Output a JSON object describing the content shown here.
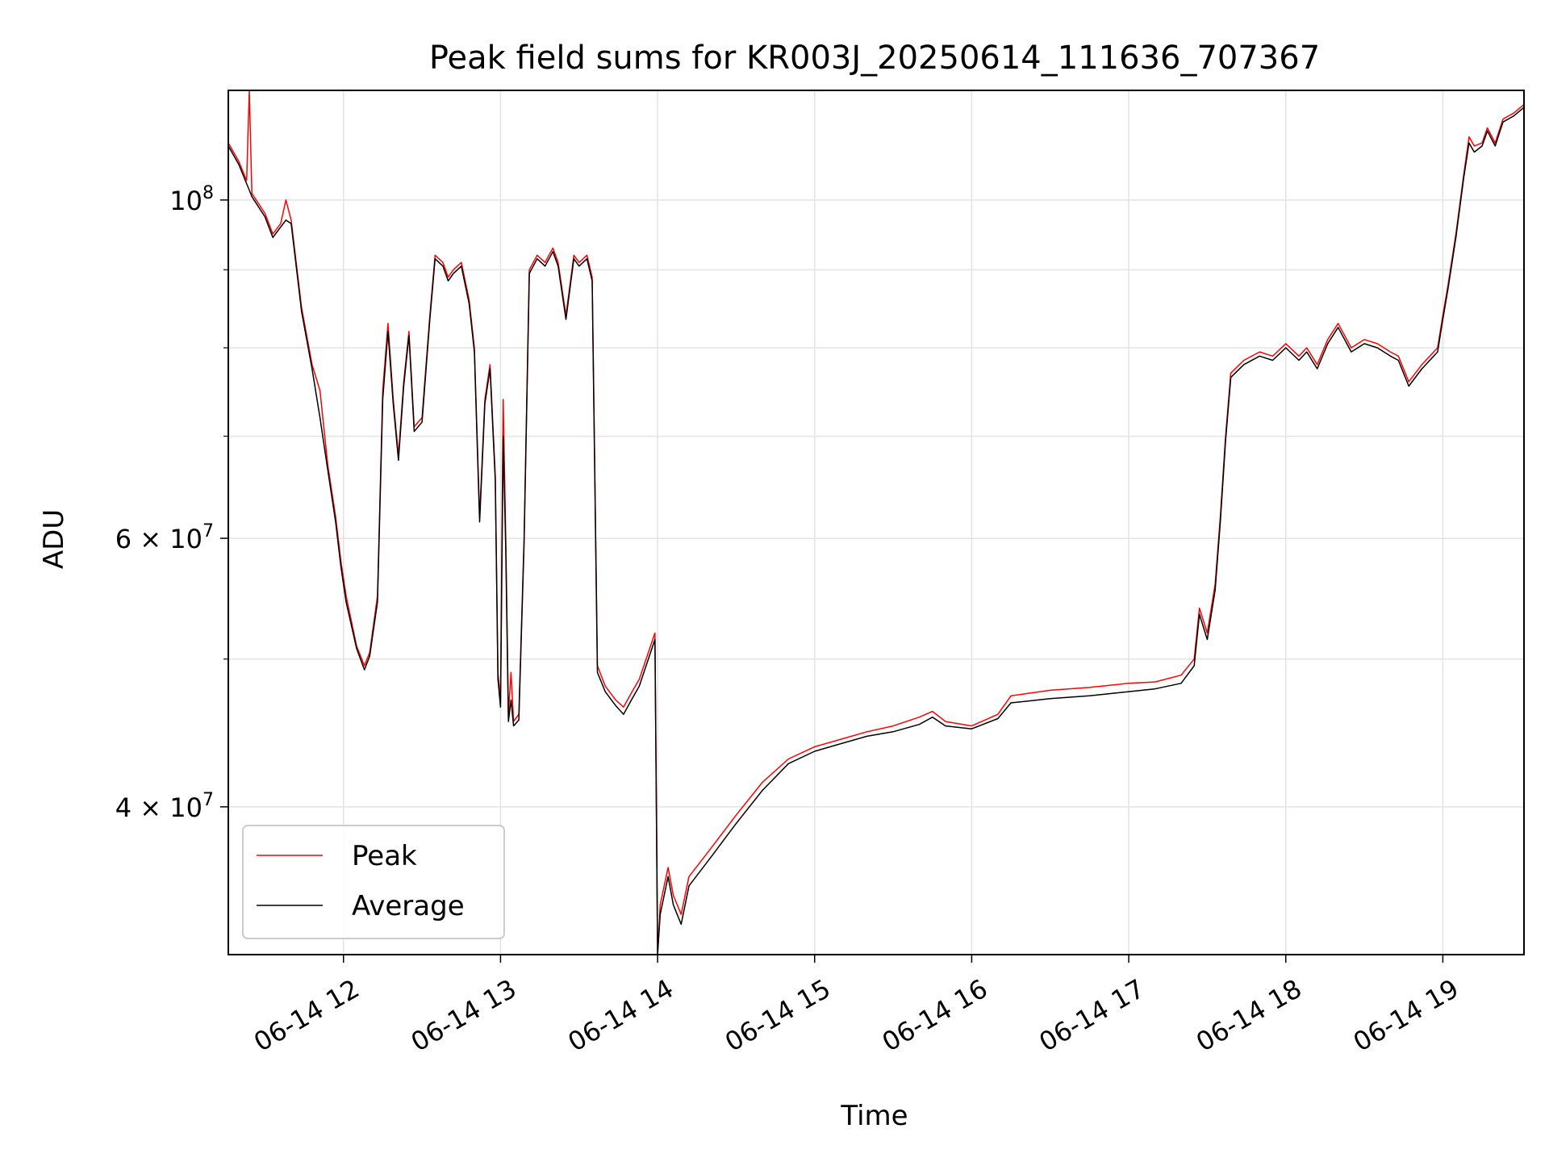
{
  "chart_data": {
    "type": "line",
    "title": "Peak field sums for KR003J_20250614_111636_707367",
    "xlabel": "Time",
    "ylabel": "ADU",
    "x_unit": "time of day (2025-06-14)",
    "xlim": [
      "11:16",
      "19:31"
    ],
    "ylim": [
      32000000,
      118000000
    ],
    "yscale": "log",
    "grid": true,
    "legend_position": "lower-left",
    "x_ticks": [
      {
        "time": "12:00",
        "label": "06-14 12"
      },
      {
        "time": "13:00",
        "label": "06-14 13"
      },
      {
        "time": "14:00",
        "label": "06-14 14"
      },
      {
        "time": "15:00",
        "label": "06-14 15"
      },
      {
        "time": "16:00",
        "label": "06-14 16"
      },
      {
        "time": "17:00",
        "label": "06-14 17"
      },
      {
        "time": "18:00",
        "label": "06-14 18"
      },
      {
        "time": "19:00",
        "label": "06-14 19"
      }
    ],
    "y_ticks": [
      {
        "value": 100000000,
        "base": "10",
        "exp": "8",
        "label": "10^8"
      },
      {
        "value": 60000000,
        "base": "6 × 10",
        "exp": "7",
        "label": "6 × 10^7"
      },
      {
        "value": 40000000,
        "base": "4 × 10",
        "exp": "7",
        "label": "4 × 10^7"
      }
    ],
    "y_minor_ticks": [
      50000000,
      70000000,
      80000000,
      90000000
    ],
    "series": [
      {
        "name": "Peak",
        "color": "#ff0000",
        "points": [
          [
            "11:16",
            109000000
          ],
          [
            "11:20",
            106000000
          ],
          [
            "11:23",
            103000000
          ],
          [
            "11:24",
            118000000
          ],
          [
            "11:25",
            101000000
          ],
          [
            "11:30",
            98000000
          ],
          [
            "11:33",
            95000000
          ],
          [
            "11:36",
            96500000
          ],
          [
            "11:38",
            100000000
          ],
          [
            "11:40",
            97000000
          ],
          [
            "11:44",
            85000000
          ],
          [
            "11:48",
            78000000
          ],
          [
            "11:51",
            75000000
          ],
          [
            "11:54",
            67000000
          ],
          [
            "11:57",
            62000000
          ],
          [
            "11:59",
            58000000
          ],
          [
            "12:01",
            55000000
          ],
          [
            "12:05",
            51000000
          ],
          [
            "12:08",
            49500000
          ],
          [
            "12:10",
            50500000
          ],
          [
            "12:13",
            55000000
          ],
          [
            "12:15",
            75000000
          ],
          [
            "12:17",
            83000000
          ],
          [
            "12:19",
            74000000
          ],
          [
            "12:21",
            68000000
          ],
          [
            "12:23",
            76000000
          ],
          [
            "12:25",
            82000000
          ],
          [
            "12:27",
            71000000
          ],
          [
            "12:30",
            72000000
          ],
          [
            "12:33",
            84000000
          ],
          [
            "12:35",
            92000000
          ],
          [
            "12:38",
            91000000
          ],
          [
            "12:40",
            89000000
          ],
          [
            "12:42",
            90000000
          ],
          [
            "12:45",
            91000000
          ],
          [
            "12:48",
            86000000
          ],
          [
            "12:50",
            80000000
          ],
          [
            "12:52",
            62000000
          ],
          [
            "12:54",
            74000000
          ],
          [
            "12:56",
            78000000
          ],
          [
            "12:58",
            66000000
          ],
          [
            "12:59",
            49000000
          ],
          [
            "13:00",
            47000000
          ],
          [
            "13:01",
            74000000
          ],
          [
            "13:02",
            60000000
          ],
          [
            "13:03",
            46000000
          ],
          [
            "13:04",
            49000000
          ],
          [
            "13:05",
            45500000
          ],
          [
            "13:07",
            46000000
          ],
          [
            "13:09",
            60000000
          ],
          [
            "13:11",
            90000000
          ],
          [
            "13:14",
            92000000
          ],
          [
            "13:17",
            91000000
          ],
          [
            "13:20",
            93000000
          ],
          [
            "13:22",
            91000000
          ],
          [
            "13:25",
            84000000
          ],
          [
            "13:28",
            92000000
          ],
          [
            "13:30",
            91000000
          ],
          [
            "13:33",
            92000000
          ],
          [
            "13:35",
            89000000
          ],
          [
            "13:37",
            49500000
          ],
          [
            "13:40",
            48000000
          ],
          [
            "13:44",
            47000000
          ],
          [
            "13:47",
            46500000
          ],
          [
            "13:50",
            47500000
          ],
          [
            "13:53",
            48500000
          ],
          [
            "13:59",
            52000000
          ],
          [
            "14:00",
            32000000
          ],
          [
            "14:01",
            34500000
          ],
          [
            "14:04",
            36500000
          ],
          [
            "14:06",
            35000000
          ],
          [
            "14:09",
            34000000
          ],
          [
            "14:12",
            36000000
          ],
          [
            "14:20",
            37500000
          ],
          [
            "14:30",
            39500000
          ],
          [
            "14:40",
            41500000
          ],
          [
            "14:50",
            43000000
          ],
          [
            "15:00",
            43800000
          ],
          [
            "15:10",
            44300000
          ],
          [
            "15:20",
            44800000
          ],
          [
            "15:30",
            45200000
          ],
          [
            "15:40",
            45800000
          ],
          [
            "15:45",
            46200000
          ],
          [
            "15:50",
            45500000
          ],
          [
            "16:00",
            45200000
          ],
          [
            "16:10",
            46000000
          ],
          [
            "16:15",
            47300000
          ],
          [
            "16:30",
            47700000
          ],
          [
            "16:45",
            47900000
          ],
          [
            "17:00",
            48200000
          ],
          [
            "17:10",
            48300000
          ],
          [
            "17:20",
            48800000
          ],
          [
            "17:25",
            50000000
          ],
          [
            "17:27",
            54000000
          ],
          [
            "17:30",
            52000000
          ],
          [
            "17:33",
            56000000
          ],
          [
            "17:35",
            62000000
          ],
          [
            "17:37",
            70000000
          ],
          [
            "17:39",
            77000000
          ],
          [
            "17:44",
            78500000
          ],
          [
            "17:50",
            79500000
          ],
          [
            "17:55",
            79000000
          ],
          [
            "18:00",
            80500000
          ],
          [
            "18:05",
            79000000
          ],
          [
            "18:08",
            80000000
          ],
          [
            "18:12",
            78000000
          ],
          [
            "18:16",
            81000000
          ],
          [
            "18:20",
            83000000
          ],
          [
            "18:25",
            80000000
          ],
          [
            "18:30",
            81000000
          ],
          [
            "18:35",
            80500000
          ],
          [
            "18:40",
            79500000
          ],
          [
            "18:43",
            79000000
          ],
          [
            "18:47",
            76000000
          ],
          [
            "18:52",
            78000000
          ],
          [
            "18:58",
            80000000
          ],
          [
            "19:00",
            84000000
          ],
          [
            "19:02",
            88000000
          ],
          [
            "19:05",
            95000000
          ],
          [
            "19:08",
            104000000
          ],
          [
            "19:10",
            110000000
          ],
          [
            "19:12",
            108500000
          ],
          [
            "19:15",
            109000000
          ],
          [
            "19:17",
            111500000
          ],
          [
            "19:20",
            109000000
          ],
          [
            "19:23",
            113000000
          ],
          [
            "19:27",
            114000000
          ],
          [
            "19:31",
            115500000
          ]
        ]
      },
      {
        "name": "Average",
        "color": "#000000",
        "points": [
          [
            "11:16",
            108500000
          ],
          [
            "11:20",
            105500000
          ],
          [
            "11:23",
            102500000
          ],
          [
            "11:24",
            101500000
          ],
          [
            "11:25",
            100500000
          ],
          [
            "11:30",
            97500000
          ],
          [
            "11:33",
            94500000
          ],
          [
            "11:36",
            96000000
          ],
          [
            "11:38",
            97000000
          ],
          [
            "11:40",
            96500000
          ],
          [
            "11:44",
            84500000
          ],
          [
            "11:48",
            77500000
          ],
          [
            "11:51",
            72000000
          ],
          [
            "11:54",
            66500000
          ],
          [
            "11:57",
            61500000
          ],
          [
            "11:59",
            57500000
          ],
          [
            "12:01",
            54500000
          ],
          [
            "12:05",
            50800000
          ],
          [
            "12:08",
            49200000
          ],
          [
            "12:10",
            50200000
          ],
          [
            "12:13",
            54500000
          ],
          [
            "12:15",
            74000000
          ],
          [
            "12:17",
            82000000
          ],
          [
            "12:19",
            73500000
          ],
          [
            "12:21",
            67500000
          ],
          [
            "12:23",
            75500000
          ],
          [
            "12:25",
            81500000
          ],
          [
            "12:27",
            70500000
          ],
          [
            "12:30",
            71500000
          ],
          [
            "12:33",
            83500000
          ],
          [
            "12:35",
            91500000
          ],
          [
            "12:38",
            90500000
          ],
          [
            "12:40",
            88500000
          ],
          [
            "12:42",
            89500000
          ],
          [
            "12:45",
            90500000
          ],
          [
            "12:48",
            85500000
          ],
          [
            "12:50",
            79500000
          ],
          [
            "12:52",
            61500000
          ],
          [
            "12:54",
            73500000
          ],
          [
            "12:56",
            77500000
          ],
          [
            "12:58",
            65500000
          ],
          [
            "12:59",
            48500000
          ],
          [
            "13:00",
            46500000
          ],
          [
            "13:01",
            70000000
          ],
          [
            "13:02",
            59000000
          ],
          [
            "13:03",
            45500000
          ],
          [
            "13:04",
            47000000
          ],
          [
            "13:05",
            45200000
          ],
          [
            "13:07",
            45600000
          ],
          [
            "13:09",
            59500000
          ],
          [
            "13:11",
            89500000
          ],
          [
            "13:14",
            91500000
          ],
          [
            "13:17",
            90500000
          ],
          [
            "13:20",
            92500000
          ],
          [
            "13:22",
            90500000
          ],
          [
            "13:25",
            83500000
          ],
          [
            "13:28",
            91500000
          ],
          [
            "13:30",
            90500000
          ],
          [
            "13:33",
            91500000
          ],
          [
            "13:35",
            88500000
          ],
          [
            "13:37",
            49000000
          ],
          [
            "13:40",
            47600000
          ],
          [
            "13:44",
            46600000
          ],
          [
            "13:47",
            46000000
          ],
          [
            "13:50",
            47000000
          ],
          [
            "13:53",
            48000000
          ],
          [
            "13:59",
            51500000
          ],
          [
            "14:00",
            32000000
          ],
          [
            "14:01",
            34000000
          ],
          [
            "14:04",
            36000000
          ],
          [
            "14:06",
            34500000
          ],
          [
            "14:09",
            33500000
          ],
          [
            "14:12",
            35500000
          ],
          [
            "14:20",
            37000000
          ],
          [
            "14:30",
            39000000
          ],
          [
            "14:40",
            41000000
          ],
          [
            "14:50",
            42700000
          ],
          [
            "15:00",
            43500000
          ],
          [
            "15:10",
            44000000
          ],
          [
            "15:20",
            44500000
          ],
          [
            "15:30",
            44800000
          ],
          [
            "15:40",
            45300000
          ],
          [
            "15:45",
            45800000
          ],
          [
            "15:50",
            45200000
          ],
          [
            "16:00",
            45000000
          ],
          [
            "16:10",
            45700000
          ],
          [
            "16:15",
            46800000
          ],
          [
            "16:30",
            47100000
          ],
          [
            "16:45",
            47300000
          ],
          [
            "17:00",
            47600000
          ],
          [
            "17:10",
            47800000
          ],
          [
            "17:20",
            48200000
          ],
          [
            "17:25",
            49500000
          ],
          [
            "17:27",
            53500000
          ],
          [
            "17:30",
            51500000
          ],
          [
            "17:33",
            55500000
          ],
          [
            "17:35",
            61500000
          ],
          [
            "17:37",
            69500000
          ],
          [
            "17:39",
            76500000
          ],
          [
            "17:44",
            78000000
          ],
          [
            "17:50",
            79000000
          ],
          [
            "17:55",
            78500000
          ],
          [
            "18:00",
            80000000
          ],
          [
            "18:05",
            78500000
          ],
          [
            "18:08",
            79500000
          ],
          [
            "18:12",
            77500000
          ],
          [
            "18:16",
            80500000
          ],
          [
            "18:20",
            82500000
          ],
          [
            "18:25",
            79500000
          ],
          [
            "18:30",
            80500000
          ],
          [
            "18:35",
            80000000
          ],
          [
            "18:40",
            79000000
          ],
          [
            "18:43",
            78500000
          ],
          [
            "18:47",
            75500000
          ],
          [
            "18:52",
            77500000
          ],
          [
            "18:58",
            79500000
          ],
          [
            "19:00",
            83500000
          ],
          [
            "19:02",
            87500000
          ],
          [
            "19:05",
            94500000
          ],
          [
            "19:08",
            103500000
          ],
          [
            "19:10",
            109000000
          ],
          [
            "19:12",
            107500000
          ],
          [
            "19:15",
            108500000
          ],
          [
            "19:17",
            111000000
          ],
          [
            "19:20",
            108500000
          ],
          [
            "19:23",
            112500000
          ],
          [
            "19:27",
            113500000
          ],
          [
            "19:31",
            115000000
          ]
        ]
      }
    ]
  }
}
